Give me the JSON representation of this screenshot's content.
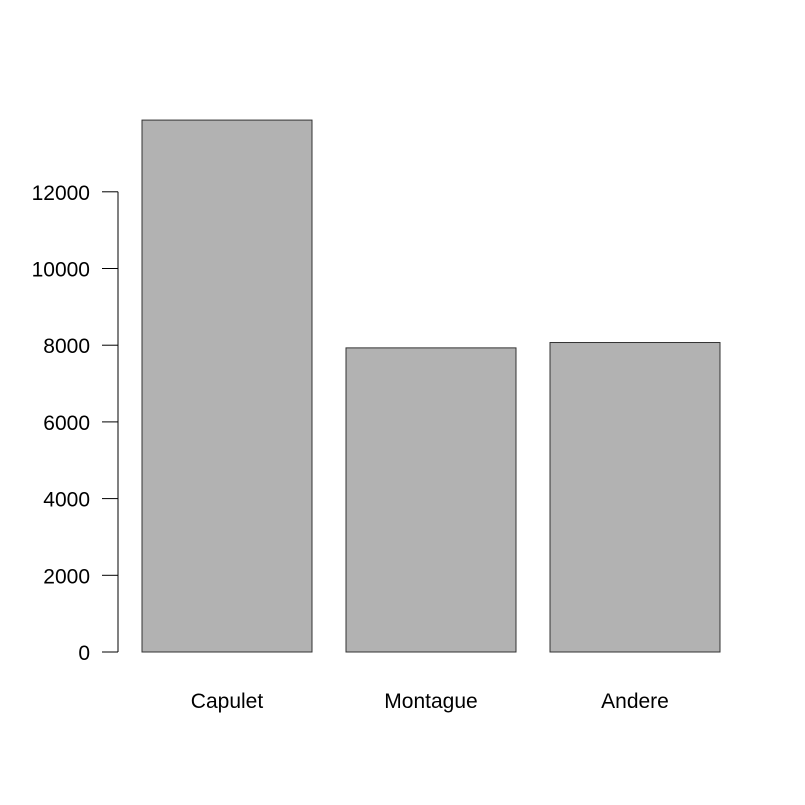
{
  "chart_data": {
    "type": "bar",
    "title": "",
    "xlabel": "",
    "ylabel": "",
    "categories": [
      "Capulet",
      "Montague",
      "Andere"
    ],
    "values": [
      13870,
      7930,
      8070
    ],
    "yticks": [
      0,
      2000,
      4000,
      6000,
      8000,
      10000,
      12000
    ],
    "ytick_labels": [
      "0",
      "2000",
      "4000",
      "6000",
      "8000",
      "10000",
      "12000"
    ],
    "ylim": [
      0,
      13870
    ],
    "grid": false,
    "legend": "none",
    "colors": {
      "bar_fill": "#b2b2b2",
      "bar_stroke": "#333333",
      "axis": "#000000"
    }
  }
}
